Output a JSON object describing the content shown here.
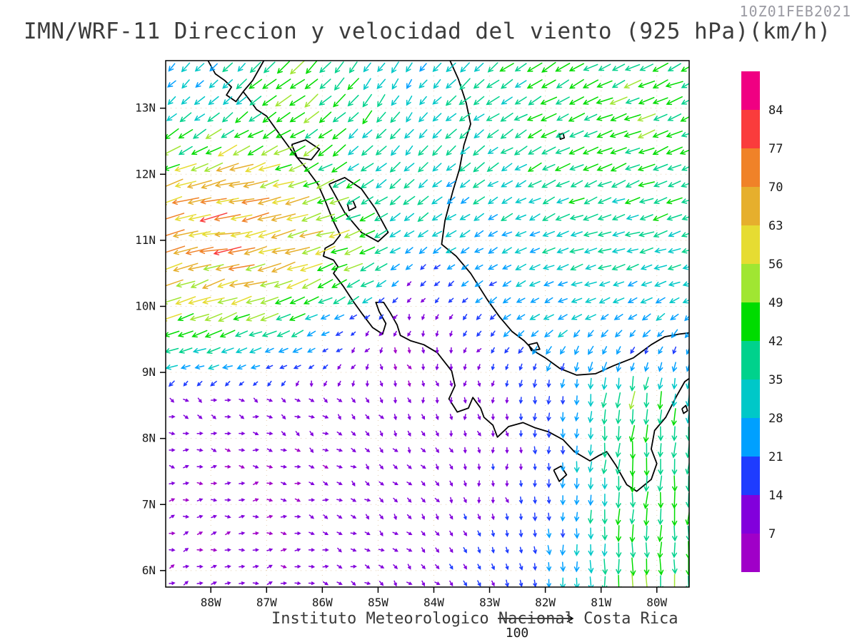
{
  "header": {
    "title": "IMN/WRF-11 Direccion y velocidad del viento (925 hPa)(km/h)",
    "timestamp": "10Z01FEB2021"
  },
  "footer": {
    "institute": "Instituto Meteorologico Nacional Costa Rica",
    "reference_vector": {
      "label": "100",
      "speed_kmh": 100
    }
  },
  "chart_data": {
    "type": "vector_field",
    "title": "IMN/WRF-11 Direccion y velocidad del viento (925 hPa)(km/h)",
    "valid_time": "10Z01FEB2021",
    "variable": "wind direction and speed",
    "pressure_level_hpa": 925,
    "units": "km/h",
    "x_axis": {
      "range_lon": [
        -88.81,
        -79.42
      ],
      "ticks": [
        {
          "label": "88W",
          "lon": -88
        },
        {
          "label": "87W",
          "lon": -87
        },
        {
          "label": "86W",
          "lon": -86
        },
        {
          "label": "85W",
          "lon": -85
        },
        {
          "label": "84W",
          "lon": -84
        },
        {
          "label": "83W",
          "lon": -83
        },
        {
          "label": "82W",
          "lon": -82
        },
        {
          "label": "81W",
          "lon": -81
        },
        {
          "label": "80W",
          "lon": -80
        }
      ]
    },
    "y_axis": {
      "range_lat": [
        13.72,
        5.75
      ],
      "ticks": [
        {
          "label": "13N",
          "lat": 13
        },
        {
          "label": "12N",
          "lat": 12
        },
        {
          "label": "11N",
          "lat": 11
        },
        {
          "label": "10N",
          "lat": 10
        },
        {
          "label": "9N",
          "lat": 9
        },
        {
          "label": "8N",
          "lat": 8
        },
        {
          "label": "7N",
          "lat": 7
        },
        {
          "label": "6N",
          "lat": 6
        }
      ]
    },
    "colorbar": {
      "levels_kmh": [
        7,
        14,
        21,
        28,
        35,
        42,
        49,
        56,
        63,
        70,
        77,
        84
      ],
      "colors": [
        "#A000C8",
        "#8200DC",
        "#1E3CFF",
        "#00A0FF",
        "#00C8C8",
        "#00D28C",
        "#00DC00",
        "#A0E632",
        "#E6DC32",
        "#E6AF2D",
        "#F08228",
        "#FA3C3C",
        "#F00082"
      ]
    },
    "wind_grid": {
      "dir_convention": "compass degrees toward which wind blows (0=N, 90=E)",
      "speed_units": "km/h",
      "lons": [
        -88.7,
        -87.5,
        -86.5,
        -85.5,
        -84.5,
        -83.5,
        -82.5,
        -81.5,
        -80.5,
        -79.3
      ],
      "lats": [
        13.7,
        13.0,
        12.3,
        11.6,
        11.0,
        10.4,
        9.8,
        9.2,
        8.6,
        8.0,
        7.3,
        6.6,
        5.8
      ],
      "cells": [
        [
          [
            28,
            225
          ],
          [
            32,
            220
          ],
          [
            48,
            230
          ],
          [
            36,
            215
          ],
          [
            30,
            212
          ],
          [
            35,
            225
          ],
          [
            40,
            235
          ],
          [
            40,
            242
          ],
          [
            42,
            246
          ],
          [
            42,
            246
          ]
        ],
        [
          [
            30,
            230
          ],
          [
            36,
            228
          ],
          [
            50,
            235
          ],
          [
            40,
            222
          ],
          [
            32,
            215
          ],
          [
            35,
            230
          ],
          [
            40,
            240
          ],
          [
            42,
            245
          ],
          [
            45,
            248
          ],
          [
            45,
            248
          ]
        ],
        [
          [
            48,
            242
          ],
          [
            55,
            248
          ],
          [
            48,
            242
          ],
          [
            38,
            230
          ],
          [
            33,
            222
          ],
          [
            33,
            232
          ],
          [
            38,
            240
          ],
          [
            40,
            245
          ],
          [
            42,
            248
          ],
          [
            42,
            250
          ]
        ],
        [
          [
            65,
            255
          ],
          [
            68,
            258
          ],
          [
            62,
            255
          ],
          [
            45,
            245
          ],
          [
            34,
            230
          ],
          [
            30,
            236
          ],
          [
            34,
            242
          ],
          [
            38,
            248
          ],
          [
            40,
            250
          ],
          [
            40,
            252
          ]
        ],
        [
          [
            68,
            258
          ],
          [
            70,
            260
          ],
          [
            65,
            258
          ],
          [
            50,
            250
          ],
          [
            30,
            235
          ],
          [
            28,
            240
          ],
          [
            30,
            245
          ],
          [
            34,
            250
          ],
          [
            36,
            252
          ],
          [
            36,
            252
          ]
        ],
        [
          [
            60,
            252
          ],
          [
            62,
            255
          ],
          [
            58,
            250
          ],
          [
            48,
            245
          ],
          [
            15,
            220
          ],
          [
            20,
            232
          ],
          [
            28,
            245
          ],
          [
            30,
            250
          ],
          [
            32,
            250
          ],
          [
            32,
            250
          ]
        ],
        [
          [
            50,
            248
          ],
          [
            48,
            248
          ],
          [
            40,
            245
          ],
          [
            18,
            235
          ],
          [
            8,
            200
          ],
          [
            15,
            215
          ],
          [
            25,
            232
          ],
          [
            28,
            240
          ],
          [
            26,
            235
          ],
          [
            28,
            230
          ]
        ],
        [
          [
            32,
            255
          ],
          [
            28,
            255
          ],
          [
            20,
            250
          ],
          [
            10,
            230
          ],
          [
            6,
            150
          ],
          [
            9,
            185
          ],
          [
            18,
            210
          ],
          [
            24,
            200
          ],
          [
            20,
            195
          ],
          [
            18,
            195
          ]
        ],
        [
          [
            10,
            120
          ],
          [
            9,
            110
          ],
          [
            8,
            120
          ],
          [
            8,
            140
          ],
          [
            8,
            160
          ],
          [
            10,
            170
          ],
          [
            14,
            180
          ],
          [
            22,
            185
          ],
          [
            48,
            188
          ],
          [
            36,
            186
          ]
        ],
        [
          [
            9,
            100
          ],
          [
            8,
            100
          ],
          [
            8,
            115
          ],
          [
            8,
            130
          ],
          [
            9,
            150
          ],
          [
            11,
            165
          ],
          [
            13,
            175
          ],
          [
            24,
            185
          ],
          [
            45,
            185
          ],
          [
            38,
            185
          ]
        ],
        [
          [
            8,
            90
          ],
          [
            7,
            85
          ],
          [
            7,
            100
          ],
          [
            8,
            120
          ],
          [
            10,
            145
          ],
          [
            12,
            160
          ],
          [
            14,
            175
          ],
          [
            24,
            182
          ],
          [
            42,
            183
          ],
          [
            40,
            183
          ]
        ],
        [
          [
            8,
            80
          ],
          [
            7,
            80
          ],
          [
            7,
            95
          ],
          [
            9,
            115
          ],
          [
            11,
            140
          ],
          [
            13,
            155
          ],
          [
            15,
            170
          ],
          [
            26,
            180
          ],
          [
            45,
            182
          ],
          [
            42,
            182
          ]
        ],
        [
          [
            8,
            75
          ],
          [
            8,
            78
          ],
          [
            8,
            90
          ],
          [
            9,
            110
          ],
          [
            11,
            135
          ],
          [
            14,
            150
          ],
          [
            17,
            165
          ],
          [
            28,
            178
          ],
          [
            46,
            180
          ],
          [
            44,
            180
          ]
        ]
      ]
    }
  },
  "map": {
    "coastline_color": "#000000",
    "gridline_color": "#cfa36a",
    "coastlines": [
      {
        "name": "pacific-coast-central-america",
        "points": [
          [
            -88.05,
            13.72
          ],
          [
            -87.92,
            13.52
          ],
          [
            -87.75,
            13.42
          ],
          [
            -87.63,
            13.32
          ],
          [
            -87.72,
            13.2
          ],
          [
            -87.55,
            13.1
          ],
          [
            -87.42,
            13.25
          ],
          [
            -87.3,
            13.12
          ],
          [
            -87.18,
            12.98
          ],
          [
            -87.0,
            12.88
          ],
          [
            -86.78,
            12.62
          ],
          [
            -86.52,
            12.32
          ],
          [
            -86.3,
            12.1
          ],
          [
            -86.08,
            11.85
          ],
          [
            -85.95,
            11.6
          ],
          [
            -85.82,
            11.32
          ],
          [
            -85.68,
            11.08
          ],
          [
            -85.8,
            10.95
          ],
          [
            -85.95,
            10.88
          ],
          [
            -85.98,
            10.76
          ],
          [
            -85.8,
            10.7
          ],
          [
            -85.72,
            10.6
          ],
          [
            -85.8,
            10.5
          ],
          [
            -85.62,
            10.3
          ],
          [
            -85.45,
            10.08
          ],
          [
            -85.28,
            9.88
          ],
          [
            -85.1,
            9.68
          ],
          [
            -84.92,
            9.58
          ],
          [
            -84.86,
            9.74
          ],
          [
            -84.98,
            9.92
          ],
          [
            -85.04,
            10.06
          ],
          [
            -84.9,
            10.06
          ],
          [
            -84.78,
            9.9
          ],
          [
            -84.66,
            9.72
          ],
          [
            -84.6,
            9.56
          ],
          [
            -84.42,
            9.48
          ],
          [
            -84.18,
            9.42
          ],
          [
            -83.94,
            9.3
          ],
          [
            -83.68,
            9.02
          ],
          [
            -83.62,
            8.8
          ],
          [
            -83.73,
            8.6
          ],
          [
            -83.58,
            8.4
          ],
          [
            -83.38,
            8.46
          ],
          [
            -83.3,
            8.62
          ],
          [
            -83.16,
            8.46
          ],
          [
            -83.1,
            8.32
          ],
          [
            -82.94,
            8.2
          ],
          [
            -82.86,
            8.02
          ],
          [
            -82.66,
            8.18
          ],
          [
            -82.4,
            8.24
          ],
          [
            -82.18,
            8.16
          ],
          [
            -81.94,
            8.1
          ],
          [
            -81.68,
            7.98
          ],
          [
            -81.48,
            7.8
          ],
          [
            -81.2,
            7.66
          ],
          [
            -81.04,
            7.74
          ],
          [
            -80.9,
            7.8
          ],
          [
            -80.74,
            7.6
          ],
          [
            -80.54,
            7.3
          ],
          [
            -80.36,
            7.2
          ],
          [
            -80.1,
            7.38
          ],
          [
            -80.0,
            7.62
          ],
          [
            -80.1,
            7.84
          ],
          [
            -80.04,
            8.12
          ],
          [
            -79.84,
            8.32
          ],
          [
            -79.66,
            8.62
          ],
          [
            -79.5,
            8.86
          ],
          [
            -79.4,
            8.92
          ]
        ]
      },
      {
        "name": "caribbean-coast",
        "points": [
          [
            -83.72,
            13.74
          ],
          [
            -83.56,
            13.44
          ],
          [
            -83.42,
            13.08
          ],
          [
            -83.34,
            12.76
          ],
          [
            -83.46,
            12.44
          ],
          [
            -83.54,
            12.08
          ],
          [
            -83.66,
            11.74
          ],
          [
            -83.8,
            11.3
          ],
          [
            -83.86,
            10.94
          ],
          [
            -83.6,
            10.76
          ],
          [
            -83.34,
            10.5
          ],
          [
            -83.04,
            10.1
          ],
          [
            -82.82,
            9.84
          ],
          [
            -82.6,
            9.62
          ],
          [
            -82.38,
            9.48
          ],
          [
            -82.2,
            9.32
          ],
          [
            -82.0,
            9.22
          ],
          [
            -81.74,
            9.06
          ],
          [
            -81.44,
            8.96
          ],
          [
            -81.1,
            8.98
          ],
          [
            -80.78,
            9.1
          ],
          [
            -80.42,
            9.22
          ],
          [
            -80.1,
            9.42
          ],
          [
            -79.86,
            9.54
          ],
          [
            -79.6,
            9.58
          ],
          [
            -79.4,
            9.6
          ]
        ]
      },
      {
        "name": "gulf-of-fonseca-inlet",
        "points": [
          [
            -87.42,
            13.25
          ],
          [
            -87.25,
            13.42
          ],
          [
            -87.05,
            13.72
          ]
        ]
      },
      {
        "name": "lake-nicaragua",
        "points": [
          [
            -85.88,
            11.85
          ],
          [
            -85.6,
            11.95
          ],
          [
            -85.3,
            11.78
          ],
          [
            -85.05,
            11.48
          ],
          [
            -84.82,
            11.12
          ],
          [
            -85.0,
            10.98
          ],
          [
            -85.3,
            11.12
          ],
          [
            -85.6,
            11.42
          ],
          [
            -85.88,
            11.85
          ]
        ]
      },
      {
        "name": "lake-managua",
        "points": [
          [
            -86.55,
            12.45
          ],
          [
            -86.3,
            12.52
          ],
          [
            -86.05,
            12.38
          ],
          [
            -86.2,
            12.22
          ],
          [
            -86.45,
            12.25
          ],
          [
            -86.55,
            12.45
          ]
        ]
      },
      {
        "name": "ometepe-island",
        "points": [
          [
            -85.55,
            11.55
          ],
          [
            -85.45,
            11.6
          ],
          [
            -85.4,
            11.5
          ],
          [
            -85.52,
            11.45
          ],
          [
            -85.55,
            11.55
          ]
        ]
      },
      {
        "name": "coiba-island",
        "points": [
          [
            -81.85,
            7.52
          ],
          [
            -81.72,
            7.58
          ],
          [
            -81.62,
            7.45
          ],
          [
            -81.75,
            7.35
          ],
          [
            -81.85,
            7.52
          ]
        ]
      },
      {
        "name": "bocas-islands",
        "points": [
          [
            -82.3,
            9.42
          ],
          [
            -82.15,
            9.45
          ],
          [
            -82.1,
            9.35
          ],
          [
            -82.25,
            9.33
          ],
          [
            -82.3,
            9.42
          ]
        ]
      },
      {
        "name": "san-andres-island",
        "points": [
          [
            -81.75,
            12.6
          ],
          [
            -81.68,
            12.62
          ],
          [
            -81.66,
            12.55
          ],
          [
            -81.73,
            12.53
          ],
          [
            -81.75,
            12.6
          ]
        ]
      },
      {
        "name": "pearl-islands",
        "points": [
          [
            -79.55,
            8.45
          ],
          [
            -79.48,
            8.5
          ],
          [
            -79.45,
            8.42
          ],
          [
            -79.52,
            8.38
          ],
          [
            -79.55,
            8.45
          ]
        ]
      }
    ]
  }
}
